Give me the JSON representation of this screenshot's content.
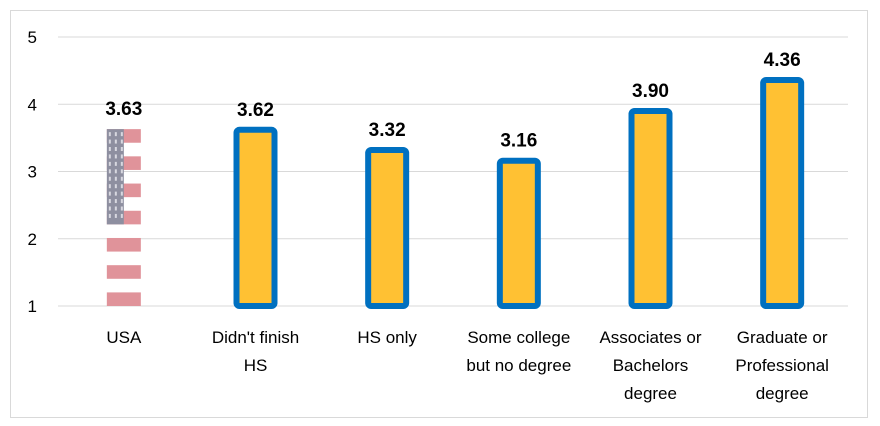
{
  "chart_data": {
    "type": "bar",
    "title": "",
    "xlabel": "",
    "ylabel": "",
    "ylim": [
      1,
      5
    ],
    "yticks": [
      1,
      2,
      3,
      4,
      5
    ],
    "grid": true,
    "categories": [
      [
        "USA"
      ],
      [
        "Didn't finish",
        "HS"
      ],
      [
        "HS only"
      ],
      [
        "Some college",
        "but no degree"
      ],
      [
        "Associates or",
        "Bachelors",
        "degree"
      ],
      [
        "Graduate or",
        "Professional",
        "degree"
      ]
    ],
    "values": [
      3.63,
      3.62,
      3.32,
      3.16,
      3.9,
      4.36
    ],
    "value_labels": [
      "3.63",
      "3.62",
      "3.32",
      "3.16",
      "3.90",
      "4.36"
    ],
    "first_bar_style": "us-flag",
    "colors": {
      "bar_fill": "#FFC133",
      "bar_border": "#0070C0",
      "grid": "#d9d9d9",
      "flag_stripe": "#E0939A",
      "flag_canton": "#8E8FA0",
      "flag_star": "#D8D8E0"
    }
  }
}
